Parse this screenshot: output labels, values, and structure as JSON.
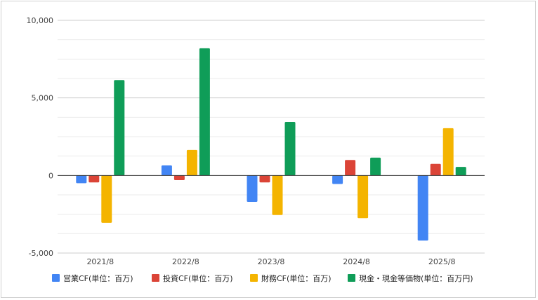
{
  "chart_data": {
    "type": "bar",
    "categories": [
      "2021/8",
      "2022/8",
      "2023/8",
      "2024/8",
      "2025/8"
    ],
    "series": [
      {
        "name": "営業CF(単位：百万)",
        "color": "#4285f4",
        "values": [
          -500,
          650,
          -1700,
          -550,
          -4200
        ]
      },
      {
        "name": "投資CF(単位：百万)",
        "color": "#db4437",
        "values": [
          -450,
          -300,
          -450,
          1000,
          750
        ]
      },
      {
        "name": "財務CF(単位：百万)",
        "color": "#f4b400",
        "values": [
          -3050,
          1650,
          -2550,
          -2750,
          3050
        ]
      },
      {
        "name": "現金・現金等価物(単位：百万円)",
        "color": "#0f9d58",
        "values": [
          6150,
          8200,
          3450,
          1150,
          550
        ]
      }
    ],
    "ylim": [
      -5000,
      10000
    ],
    "yticks": [
      -5000,
      0,
      5000,
      10000
    ],
    "ytick_labels": [
      "-5,000",
      "0",
      "5,000",
      "10,000"
    ],
    "minor_grid_step": 1250,
    "grid": true,
    "legend_position": "bottom"
  }
}
